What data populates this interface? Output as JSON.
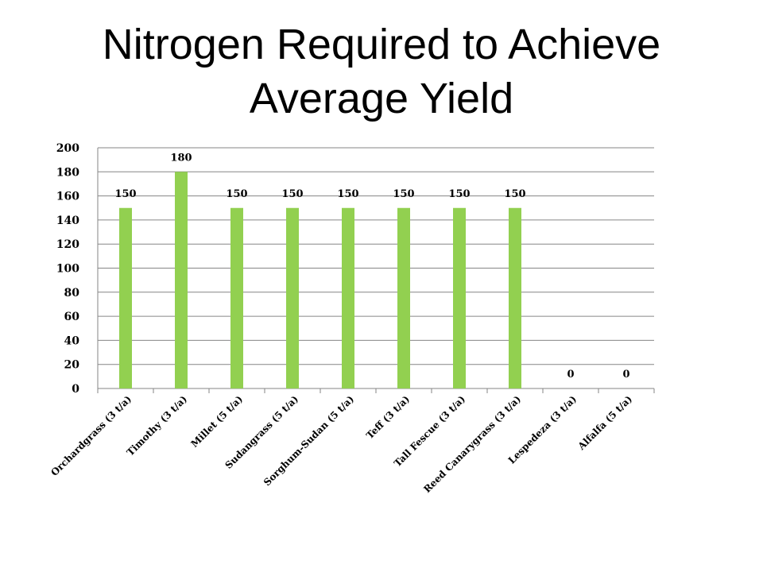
{
  "slide": {
    "title_line1": "Nitrogen Required to Achieve",
    "title_line2": "Average Yield"
  },
  "chart_data": {
    "type": "bar",
    "title": "",
    "xlabel": "",
    "ylabel": "",
    "categories": [
      "Orchardgrass (3 t/a)",
      "Timothy (3 t/a)",
      "Millet (5 t/a)",
      "Sudangrass (5 t/a)",
      "Sorghum-Sudan (5 t/a)",
      "Teff (3 t/a)",
      "Tall Fescue (3 t/a)",
      "Reed Canarygrass (3 t/a)",
      "Lespedeza (3 t/a)",
      "Alfalfa (5 t/a)"
    ],
    "values": [
      150,
      180,
      150,
      150,
      150,
      150,
      150,
      150,
      0,
      0
    ],
    "ylim": [
      0,
      200
    ],
    "yticks": [
      0,
      20,
      40,
      60,
      80,
      100,
      120,
      140,
      160,
      180,
      200
    ],
    "grid": true,
    "legend": "none",
    "bar_color": "#92d050",
    "grid_color": "#868686"
  }
}
